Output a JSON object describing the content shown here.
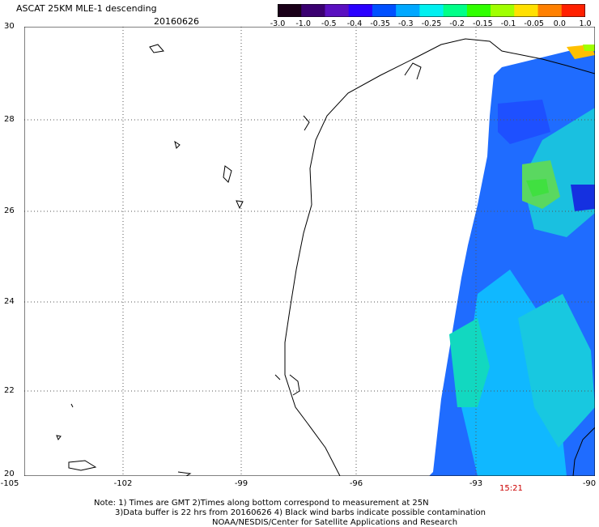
{
  "header": {
    "title": "ASCAT 25KM MLE-1 descending",
    "date": "20160626"
  },
  "colorbar": {
    "labels": [
      "-3.0",
      "-1.0",
      "-0.5",
      "-0.4",
      "-0.35",
      "-0.3",
      "-0.25",
      "-0.2",
      "-0.15",
      "-0.1",
      "-0.05",
      "0.0",
      "1.0"
    ],
    "colors": [
      "#1a0018",
      "#3a0070",
      "#5a10c0",
      "#2a00ff",
      "#0050ff",
      "#00a8ff",
      "#00f0f0",
      "#00ff88",
      "#30ff00",
      "#a0ff00",
      "#ffe000",
      "#ff8000",
      "#ff2000"
    ]
  },
  "map": {
    "lat_labels": [
      "30",
      "28",
      "26",
      "24",
      "22",
      "20"
    ],
    "lon_labels": [
      "-105",
      "-102",
      "-99",
      "-96",
      "-93",
      "-90"
    ],
    "time_label": "15:21"
  },
  "notes": {
    "line1": "Note: 1) Times are GMT 2)Times along bottom correspond to measurement at 25N",
    "line2": "3)Data buffer is 22 hrs from 20160626 4) Black wind barbs indicate possible contamination",
    "line3": "NOAA/NESDIS/Center for Satellite Applications and Research"
  }
}
